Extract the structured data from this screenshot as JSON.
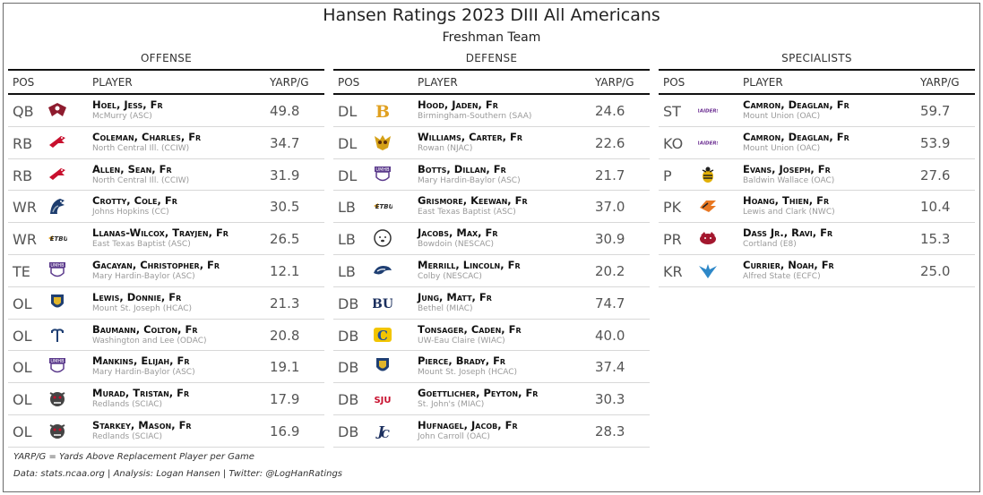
{
  "title": "Hansen Ratings 2023 DIII All Americans",
  "subtitle": "Freshman Team",
  "columns": {
    "pos": "POS",
    "player": "PLAYER",
    "metric": "YARP/G"
  },
  "footnotes": {
    "definition": "YARP/G = Yards Above Replacement Player per Game",
    "credits": "Data: stats.ncaa.org | Analysis: Logan Hansen | Twitter: @LogHanRatings"
  },
  "chart_data": {
    "type": "table",
    "title": "Hansen Ratings 2023 DIII All Americans",
    "subtitle": "Freshman Team",
    "columns": [
      "POS",
      "PLAYER",
      "YARP/G"
    ],
    "sections": [
      {
        "name": "OFFENSE",
        "rows": [
          {
            "pos": "QB",
            "player": "Hoel, Jess, Fr",
            "school": "McMurry (ASC)",
            "value": "49.8",
            "logo": "mcmurry-logo",
            "color": "#8e1b2e"
          },
          {
            "pos": "RB",
            "player": "Coleman, Charles, Fr",
            "school": "North Central Ill. (CCIW)",
            "value": "34.7",
            "logo": "cardinal-logo",
            "color": "#c8102e"
          },
          {
            "pos": "RB",
            "player": "Allen, Sean, Fr",
            "school": "North Central Ill. (CCIW)",
            "value": "31.9",
            "logo": "cardinal-logo",
            "color": "#c8102e"
          },
          {
            "pos": "WR",
            "player": "Crotty, Cole, Fr",
            "school": "Johns Hopkins (CC)",
            "value": "30.5",
            "logo": "blue-jay-logo",
            "color": "#1d3c6e"
          },
          {
            "pos": "WR",
            "player": "Llanas-Wilcox, Trayjen, Fr",
            "school": "East Texas Baptist (ASC)",
            "value": "26.5",
            "logo": "etbu-logo",
            "color": "#2b2b2b"
          },
          {
            "pos": "TE",
            "player": "Gacayan, Christopher, Fr",
            "school": "Mary Hardin-Baylor (ASC)",
            "value": "12.1",
            "logo": "umhb-logo",
            "color": "#5b3a8c"
          },
          {
            "pos": "OL",
            "player": "Lewis, Donnie, Fr",
            "school": "Mount St. Joseph (HCAC)",
            "value": "21.3",
            "logo": "lion-shield-logo",
            "color": "#1f3f73"
          },
          {
            "pos": "OL",
            "player": "Baumann, Colton, Fr",
            "school": "Washington and Lee (ODAC)",
            "value": "20.8",
            "logo": "trident-logo",
            "color": "#1f3f73"
          },
          {
            "pos": "OL",
            "player": "Mankins, Elijah, Fr",
            "school": "Mary Hardin-Baylor (ASC)",
            "value": "19.1",
            "logo": "umhb-logo",
            "color": "#5b3a8c"
          },
          {
            "pos": "OL",
            "player": "Murad, Tristan, Fr",
            "school": "Redlands (SCIAC)",
            "value": "17.9",
            "logo": "bulldog-logo",
            "color": "#444444"
          },
          {
            "pos": "OL",
            "player": "Starkey, Mason, Fr",
            "school": "Redlands (SCIAC)",
            "value": "16.9",
            "logo": "bulldog-logo",
            "color": "#444444"
          }
        ]
      },
      {
        "name": "DEFENSE",
        "rows": [
          {
            "pos": "DL",
            "player": "Hood, Jaden, Fr",
            "school": "Birmingham-Southern (SAA)",
            "value": "24.6",
            "logo": "bsc-b-logo",
            "color": "#e0a020"
          },
          {
            "pos": "DL",
            "player": "Williams, Carter, Fr",
            "school": "Rowan (NJAC)",
            "value": "22.6",
            "logo": "owl-logo",
            "color": "#d4a017"
          },
          {
            "pos": "DL",
            "player": "Botts, Dillan, Fr",
            "school": "Mary Hardin-Baylor (ASC)",
            "value": "21.7",
            "logo": "umhb-logo",
            "color": "#5b3a8c"
          },
          {
            "pos": "LB",
            "player": "Grismore, Keewan, Fr",
            "school": "East Texas Baptist (ASC)",
            "value": "37.0",
            "logo": "etbu-logo",
            "color": "#2b2b2b"
          },
          {
            "pos": "LB",
            "player": "Jacobs, Max, Fr",
            "school": "Bowdoin (NESCAC)",
            "value": "30.9",
            "logo": "polar-bear-logo",
            "color": "#333333"
          },
          {
            "pos": "LB",
            "player": "Merrill, Lincoln, Fr",
            "school": "Colby (NESCAC)",
            "value": "20.2",
            "logo": "mule-logo",
            "color": "#1f3f73"
          },
          {
            "pos": "DB",
            "player": "Jung, Matt, Fr",
            "school": "Bethel (MIAC)",
            "value": "74.7",
            "logo": "bu-logo",
            "color": "#1b2f5e"
          },
          {
            "pos": "DB",
            "player": "Tonsager, Caden, Fr",
            "school": "UW-Eau Claire (WIAC)",
            "value": "40.0",
            "logo": "uwec-logo",
            "color": "#1f4fa0"
          },
          {
            "pos": "DB",
            "player": "Pierce, Brady, Fr",
            "school": "Mount St. Joseph (HCAC)",
            "value": "37.4",
            "logo": "lion-shield-logo",
            "color": "#1f3f73"
          },
          {
            "pos": "DB",
            "player": "Goettlicher, Peyton, Fr",
            "school": "St. John's (MIAC)",
            "value": "30.3",
            "logo": "sju-logo",
            "color": "#c8102e"
          },
          {
            "pos": "DB",
            "player": "Hufnagel, Jacob, Fr",
            "school": "John Carroll (OAC)",
            "value": "28.3",
            "logo": "jc-logo",
            "color": "#1b2f5e"
          }
        ]
      },
      {
        "name": "SPECIALISTS",
        "rows": [
          {
            "pos": "ST",
            "player": "Camron, Deaglan, Fr",
            "school": "Mount Union (OAC)",
            "value": "59.7",
            "logo": "raiders-logo",
            "color": "#6a2c91"
          },
          {
            "pos": "KO",
            "player": "Camron, Deaglan, Fr",
            "school": "Mount Union (OAC)",
            "value": "53.9",
            "logo": "raiders-logo",
            "color": "#6a2c91"
          },
          {
            "pos": "P",
            "player": "Evans, Joseph, Fr",
            "school": "Baldwin Wallace (OAC)",
            "value": "27.6",
            "logo": "yellow-jacket-logo",
            "color": "#e2b007"
          },
          {
            "pos": "PK",
            "player": "Hoang, Thien, Fr",
            "school": "Lewis and Clark (NWC)",
            "value": "10.4",
            "logo": "pioneer-logo",
            "color": "#e87722"
          },
          {
            "pos": "PR",
            "player": "Dass Jr., Ravi, Fr",
            "school": "Cortland (E8)",
            "value": "15.3",
            "logo": "red-dragon-logo",
            "color": "#a3172e"
          },
          {
            "pos": "KR",
            "player": "Currier, Noah, Fr",
            "school": "Alfred State (ECFC)",
            "value": "25.0",
            "logo": "pioneer-bird-logo",
            "color": "#2e88c8"
          }
        ]
      }
    ]
  }
}
